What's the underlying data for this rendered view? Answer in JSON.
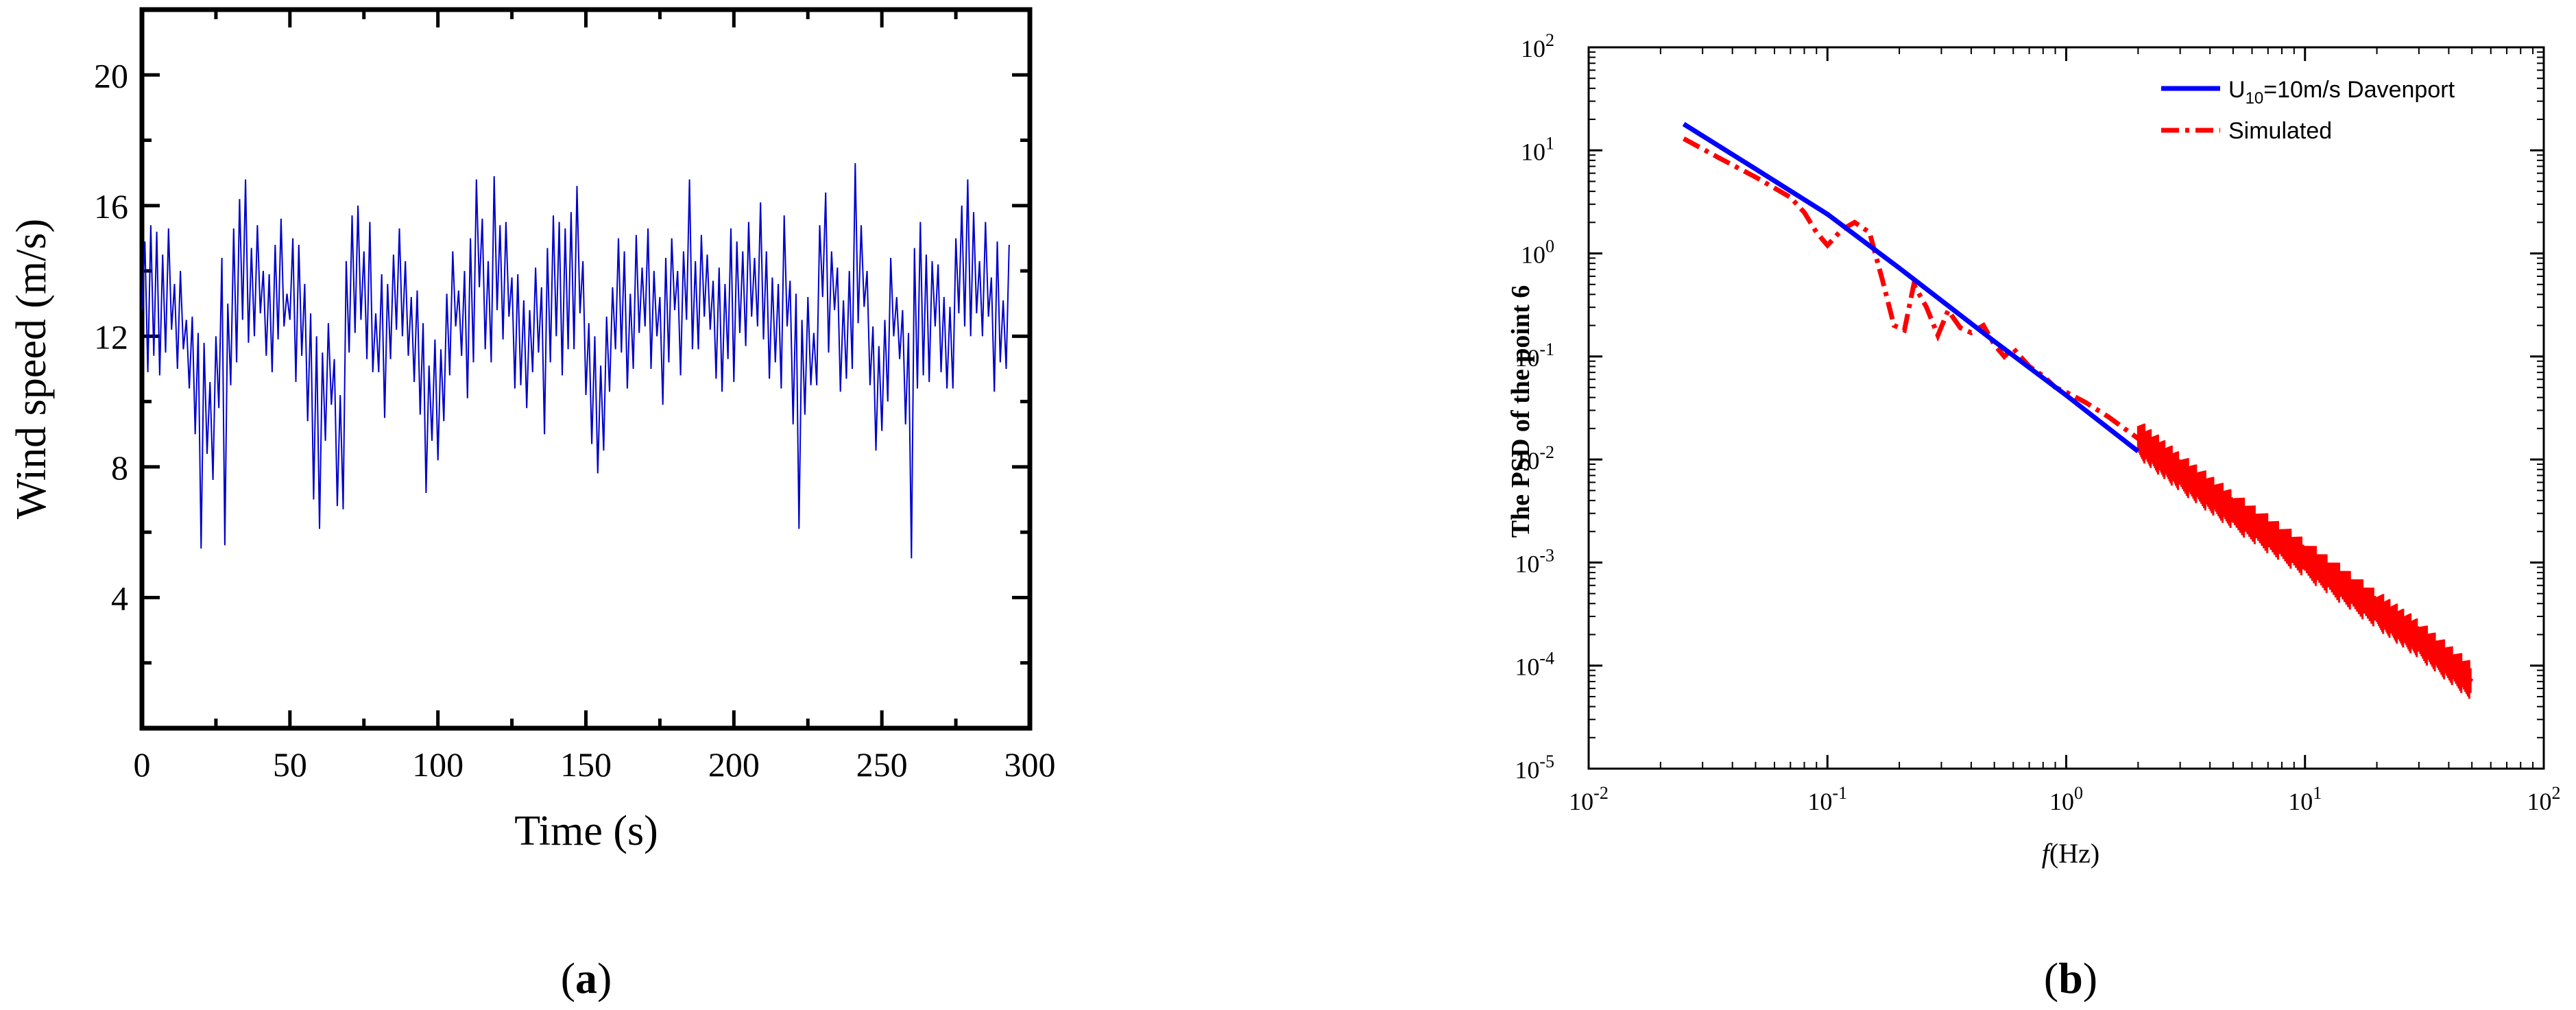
{
  "chart_data": [
    {
      "panel_label": "(a)",
      "panel_letter": "a",
      "type": "line",
      "title": "",
      "xlabel": "Time (s)",
      "ylabel": "Wind speed (m/s)",
      "xlim": [
        0,
        300
      ],
      "ylim": [
        0,
        22
      ],
      "xticks": [
        0,
        50,
        100,
        150,
        200,
        250,
        300
      ],
      "yticks": [
        4,
        8,
        12,
        16,
        20
      ],
      "grid": false,
      "legend": "none",
      "series": [
        {
          "color": "#0000cc",
          "sampling_interval_s": 1,
          "y": [
            12.8,
            14.9,
            10.9,
            15.4,
            11.4,
            15.2,
            10.8,
            14.5,
            11.5,
            15.3,
            12.2,
            13.6,
            11.0,
            14.0,
            11.6,
            12.5,
            10.4,
            12.6,
            9.0,
            12.1,
            5.5,
            11.8,
            8.4,
            10.6,
            7.6,
            12.0,
            9.8,
            14.4,
            5.6,
            13.0,
            10.5,
            15.3,
            11.2,
            16.2,
            12.5,
            16.8,
            11.8,
            14.7,
            12.0,
            15.4,
            12.7,
            14.0,
            11.4,
            13.9,
            10.9,
            14.8,
            11.9,
            15.6,
            12.3,
            13.3,
            12.5,
            15.0,
            10.6,
            14.8,
            11.4,
            13.6,
            9.4,
            12.7,
            7.0,
            12.0,
            6.1,
            11.5,
            8.8,
            12.4,
            9.9,
            11.3,
            6.8,
            10.2,
            6.7,
            14.3,
            11.5,
            15.7,
            12.1,
            16.0,
            12.5,
            14.6,
            11.3,
            15.5,
            10.9,
            12.7,
            10.9,
            13.9,
            9.5,
            13.6,
            11.3,
            14.5,
            12.2,
            15.3,
            12.0,
            14.3,
            11.4,
            13.2,
            10.6,
            13.4,
            9.6,
            12.4,
            7.2,
            11.1,
            8.8,
            11.9,
            8.2,
            11.6,
            9.4,
            13.3,
            10.8,
            14.6,
            12.3,
            13.4,
            11.4,
            14.0,
            10.1,
            15.0,
            11.2,
            16.8,
            13.5,
            15.6,
            11.6,
            14.3,
            11.2,
            16.9,
            12.8,
            15.4,
            11.9,
            15.5,
            12.6,
            13.8,
            10.4,
            13.9,
            10.5,
            13.1,
            9.8,
            12.8,
            10.9,
            14.1,
            11.5,
            13.5,
            9.0,
            14.7,
            11.2,
            15.7,
            12.0,
            15.5,
            10.8,
            15.3,
            11.6,
            15.8,
            11.6,
            16.6,
            12.7,
            14.3,
            10.2,
            12.4,
            8.7,
            12.0,
            7.8,
            11.1,
            8.5,
            12.6,
            10.3,
            13.5,
            11.6,
            15.0,
            11.5,
            14.6,
            10.4,
            13.3,
            11.0,
            15.1,
            12.1,
            14.1,
            12.3,
            15.3,
            11.0,
            14.0,
            12.0,
            13.2,
            9.9,
            14.4,
            11.2,
            15.0,
            12.8,
            14.0,
            10.8,
            14.6,
            12.5,
            16.8,
            11.6,
            14.3,
            11.6,
            15.1,
            12.6,
            14.5,
            12.2,
            13.7,
            10.7,
            14.1,
            10.3,
            13.6,
            11.3,
            15.3,
            10.6,
            14.9,
            12.1,
            14.6,
            11.7,
            15.5,
            12.6,
            14.4,
            12.3,
            16.1,
            11.9,
            14.6,
            10.7,
            13.8,
            11.2,
            13.6,
            10.4,
            15.7,
            12.3,
            13.7,
            9.3,
            13.3,
            6.1,
            12.5,
            9.6,
            13.2,
            10.5,
            12.1,
            10.5,
            15.4,
            13.2,
            16.4,
            11.5,
            14.6,
            12.8,
            14.1,
            10.3,
            13.1,
            10.7,
            14.0,
            11.0,
            17.3,
            12.4,
            15.4,
            12.9,
            14.0,
            10.5,
            12.3,
            8.5,
            11.7,
            9.1,
            12.5,
            10.0,
            14.4,
            12.0,
            13.2,
            11.3,
            12.8,
            9.3,
            12.1,
            5.2,
            14.7,
            10.4,
            15.5,
            10.8,
            14.5,
            10.6,
            14.3,
            12.3,
            14.2,
            10.9,
            13.2,
            10.4,
            12.9,
            10.4,
            15.0,
            12.7,
            16.0,
            12.3,
            16.8,
            12.0,
            15.8,
            12.7,
            14.3,
            12.0,
            15.5,
            12.6,
            13.8,
            10.3,
            14.9,
            11.2,
            13.1,
            11.0,
            14.8
          ]
        }
      ]
    },
    {
      "panel_label": "(b)",
      "panel_letter": "b",
      "type": "line",
      "title": "",
      "xlabel_italic": "f",
      "xlabel_rest": "(Hz)",
      "ylabel": "The PSD of the point 6",
      "xscale": "log",
      "yscale": "log",
      "xlim": [
        0.01,
        100
      ],
      "ylim": [
        1e-05,
        100
      ],
      "xticks": [
        0.01,
        0.1,
        1,
        10,
        100
      ],
      "yticks": [
        1e-05,
        0.0001,
        0.001,
        0.01,
        0.1,
        1,
        10,
        100
      ],
      "xtick_labels": [
        [
          "10",
          "-2"
        ],
        [
          "10",
          "-1"
        ],
        [
          "10",
          "0"
        ],
        [
          "10",
          "1"
        ],
        [
          "10",
          "2"
        ]
      ],
      "ytick_labels": [
        [
          "10",
          "-5"
        ],
        [
          "10",
          "-4"
        ],
        [
          "10",
          "-3"
        ],
        [
          "10",
          "-2"
        ],
        [
          "10",
          "-1"
        ],
        [
          "10",
          "0"
        ],
        [
          "10",
          "1"
        ],
        [
          "10",
          "2"
        ]
      ],
      "grid": false,
      "legend": "top-right",
      "series": [
        {
          "legend_main": "U",
          "legend_sub": "10",
          "legend_rest": "=10m/s Davenport",
          "color": "#0000ff",
          "style": "solid",
          "points": [
            [
              0.025,
              18.0
            ],
            [
              0.05,
              6.6
            ],
            [
              0.1,
              2.4
            ],
            [
              0.2,
              0.72
            ],
            [
              0.5,
              0.14
            ],
            [
              1.0,
              0.042
            ],
            [
              2.0,
              0.012
            ]
          ]
        },
        {
          "name": "Simulated",
          "color": "#ff0000",
          "style": "dash-dot",
          "points": [
            [
              0.025,
              13.0
            ],
            [
              0.035,
              8.5
            ],
            [
              0.05,
              5.5
            ],
            [
              0.07,
              3.5
            ],
            [
              0.08,
              2.5
            ],
            [
              0.09,
              1.6
            ],
            [
              0.1,
              1.2
            ],
            [
              0.115,
              1.7
            ],
            [
              0.13,
              2.0
            ],
            [
              0.15,
              1.6
            ],
            [
              0.17,
              0.55
            ],
            [
              0.19,
              0.2
            ],
            [
              0.21,
              0.18
            ],
            [
              0.23,
              0.5
            ],
            [
              0.26,
              0.3
            ],
            [
              0.29,
              0.16
            ],
            [
              0.32,
              0.28
            ],
            [
              0.36,
              0.19
            ],
            [
              0.4,
              0.17
            ],
            [
              0.45,
              0.2
            ],
            [
              0.5,
              0.13
            ],
            [
              0.55,
              0.1
            ],
            [
              0.6,
              0.12
            ],
            [
              0.7,
              0.08
            ],
            [
              0.8,
              0.065
            ],
            [
              0.9,
              0.05
            ],
            [
              1.0,
              0.045
            ],
            [
              1.2,
              0.036
            ],
            [
              1.5,
              0.026
            ],
            [
              2.0,
              0.016
            ],
            [
              3.0,
              0.0075
            ],
            [
              5.0,
              0.0032
            ],
            [
              10.0,
              0.0011
            ],
            [
              20.0,
              0.00035
            ],
            [
              30.0,
              0.00018
            ],
            [
              50.0,
              7e-05
            ]
          ]
        }
      ]
    }
  ]
}
